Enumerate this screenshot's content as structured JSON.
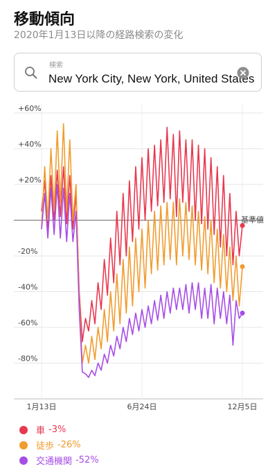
{
  "header": {
    "title": "移動傾向",
    "subtitle": "2020年1月13日以降の経路検索の変化"
  },
  "search": {
    "label": "検索",
    "query": "New York City, New York, United States"
  },
  "chart_data": {
    "type": "line",
    "categories": [
      "1月13日",
      null,
      null,
      null,
      null,
      null,
      null,
      null,
      null,
      null,
      null,
      null,
      null,
      null,
      null,
      null,
      null,
      null,
      null,
      null,
      null,
      null,
      null,
      null,
      null,
      null,
      null,
      null,
      null,
      null,
      null,
      null,
      "6月24日",
      null,
      null,
      null,
      null,
      null,
      null,
      null,
      null,
      null,
      null,
      null,
      null,
      null,
      null,
      null,
      null,
      null,
      null,
      null,
      null,
      null,
      null,
      null,
      null,
      null,
      null,
      null,
      null,
      null,
      null,
      null,
      "12月5日"
    ],
    "ylim": [
      -100,
      65
    ],
    "yticks": [
      {
        "value": 60,
        "label": "+60%"
      },
      {
        "value": 40,
        "label": "+40%"
      },
      {
        "value": 20,
        "label": "+20%"
      },
      {
        "value": 0,
        "label": "基準値"
      },
      {
        "value": -20,
        "label": "-20%"
      },
      {
        "value": -40,
        "label": "-40%"
      },
      {
        "value": -60,
        "label": "-60%"
      },
      {
        "value": -80,
        "label": "-80%"
      }
    ],
    "grid": true,
    "series": [
      {
        "name": "車",
        "legend_value": "-3%",
        "color": "#e8384f",
        "values": [
          5,
          22,
          -5,
          25,
          0,
          28,
          2,
          30,
          -2,
          25,
          -5,
          15,
          -40,
          -68,
          -55,
          -62,
          -45,
          -58,
          -35,
          -50,
          -22,
          -42,
          -10,
          -35,
          5,
          -25,
          15,
          -20,
          22,
          -12,
          30,
          -5,
          35,
          0,
          40,
          5,
          42,
          8,
          45,
          10,
          52,
          12,
          48,
          2,
          50,
          10,
          45,
          5,
          45,
          0,
          42,
          -2,
          40,
          -5,
          35,
          -8,
          30,
          -15,
          25,
          -20,
          15,
          -25,
          5,
          -20,
          -3
        ]
      },
      {
        "name": "徒歩",
        "legend_value": "-26%",
        "color": "#f09c2e",
        "values": [
          -5,
          30,
          0,
          40,
          5,
          50,
          10,
          54,
          5,
          45,
          0,
          20,
          -45,
          -80,
          -70,
          -80,
          -65,
          -78,
          -60,
          -72,
          -50,
          -68,
          -40,
          -62,
          -30,
          -58,
          -22,
          -52,
          -15,
          -48,
          -10,
          -40,
          -5,
          -38,
          0,
          -30,
          5,
          -28,
          8,
          -25,
          10,
          -22,
          10,
          -25,
          12,
          -20,
          10,
          -22,
          8,
          -25,
          5,
          -28,
          2,
          -30,
          0,
          -35,
          -5,
          -38,
          -8,
          -40,
          -15,
          -45,
          -20,
          -48,
          -26
        ]
      },
      {
        "name": "交通機関",
        "legend_value": "-52%",
        "color": "#a64de6",
        "values": [
          -5,
          15,
          -10,
          18,
          -8,
          20,
          -10,
          18,
          -12,
          15,
          -12,
          5,
          -50,
          -85,
          -86,
          -88,
          -84,
          -87,
          -80,
          -84,
          -75,
          -80,
          -70,
          -76,
          -65,
          -72,
          -60,
          -68,
          -55,
          -64,
          -52,
          -62,
          -50,
          -60,
          -48,
          -58,
          -45,
          -56,
          -42,
          -55,
          -40,
          -52,
          -38,
          -50,
          -38,
          -50,
          -36,
          -52,
          -35,
          -50,
          -35,
          -55,
          -38,
          -55,
          -36,
          -58,
          -38,
          -55,
          -40,
          -58,
          -42,
          -70,
          -45,
          -55,
          -52
        ]
      }
    ]
  }
}
